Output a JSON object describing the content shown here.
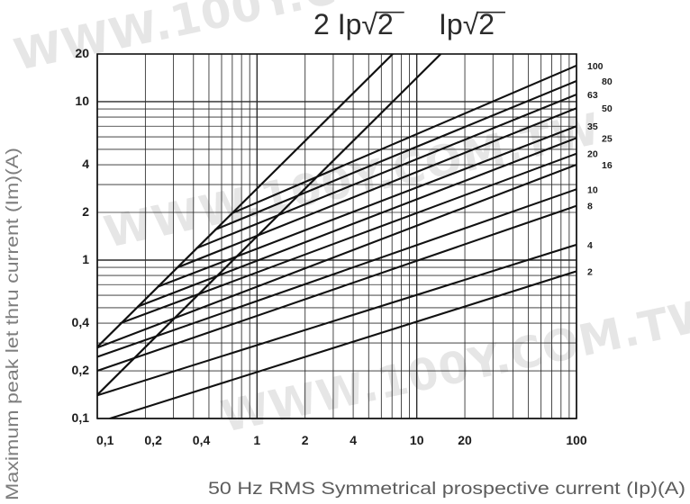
{
  "watermark": "WWW.100Y.COM.TW",
  "colors": {
    "curve": "#111111",
    "grid": "#2a2a2a",
    "frame": "#111111",
    "watermark": "#e6e6e6",
    "x_label": "#5c5c5c",
    "y_label": "#7d7d7d"
  },
  "chart_data": {
    "type": "line",
    "xlabel": "50 Hz RMS Symmetrical prospective current (Ip)(A)",
    "ylabel": "Maximum peak let thru current (Im)(A)",
    "x_scale": "log",
    "y_scale": "log",
    "xlim": [
      0.1,
      100
    ],
    "ylim": [
      0.1,
      20
    ],
    "grid": true,
    "x_ticks": [
      {
        "value": 0.1,
        "label": "0,1"
      },
      {
        "value": 0.2,
        "label": "0,2"
      },
      {
        "value": 0.4,
        "label": "0,4"
      },
      {
        "value": 1,
        "label": "1"
      },
      {
        "value": 2,
        "label": "2"
      },
      {
        "value": 4,
        "label": "4"
      },
      {
        "value": 10,
        "label": "10"
      },
      {
        "value": 20,
        "label": "20"
      },
      {
        "value": 100,
        "label": "100"
      }
    ],
    "y_ticks": [
      {
        "value": 0.1,
        "label": "0,1"
      },
      {
        "value": 0.2,
        "label": "0,2"
      },
      {
        "value": 0.4,
        "label": "0,4"
      },
      {
        "value": 1,
        "label": "1"
      },
      {
        "value": 2,
        "label": "2"
      },
      {
        "value": 4,
        "label": "4"
      },
      {
        "value": 10,
        "label": "10"
      },
      {
        "value": 20,
        "label": "20"
      }
    ],
    "reference_lines": [
      {
        "name": "2 Ip√2",
        "points": [
          [
            0.1,
            0.283
          ],
          [
            7.07,
            20
          ]
        ]
      },
      {
        "name": "Ip√2",
        "points": [
          [
            0.1,
            0.141
          ],
          [
            14.14,
            20
          ]
        ]
      }
    ],
    "series": [
      {
        "name": "100",
        "points": [
          [
            0.7,
            1.98
          ],
          [
            100,
            16.9
          ]
        ]
      },
      {
        "name": "80",
        "points": [
          [
            0.55,
            1.56
          ],
          [
            100,
            13.5
          ]
        ]
      },
      {
        "name": "63",
        "points": [
          [
            0.42,
            1.19
          ],
          [
            100,
            11.1
          ]
        ]
      },
      {
        "name": "50",
        "points": [
          [
            0.32,
            0.9
          ],
          [
            100,
            9.1
          ]
        ]
      },
      {
        "name": "35",
        "points": [
          [
            0.24,
            0.68
          ],
          [
            100,
            7.0
          ]
        ]
      },
      {
        "name": "25",
        "points": [
          [
            0.18,
            0.51
          ],
          [
            100,
            5.9
          ]
        ]
      },
      {
        "name": "20",
        "points": [
          [
            0.14,
            0.4
          ],
          [
            100,
            4.7
          ]
        ]
      },
      {
        "name": "16",
        "points": [
          [
            0.1,
            0.28
          ],
          [
            100,
            4.0
          ]
        ]
      },
      {
        "name": "10",
        "points": [
          [
            0.1,
            0.245
          ],
          [
            100,
            2.8
          ]
        ]
      },
      {
        "name": "8",
        "points": [
          [
            0.1,
            0.2
          ],
          [
            100,
            2.2
          ]
        ]
      },
      {
        "name": "4",
        "points": [
          [
            0.1,
            0.14
          ],
          [
            100,
            1.25
          ]
        ]
      },
      {
        "name": "2",
        "points": [
          [
            0.12,
            0.1
          ],
          [
            100,
            0.85
          ]
        ]
      }
    ]
  }
}
